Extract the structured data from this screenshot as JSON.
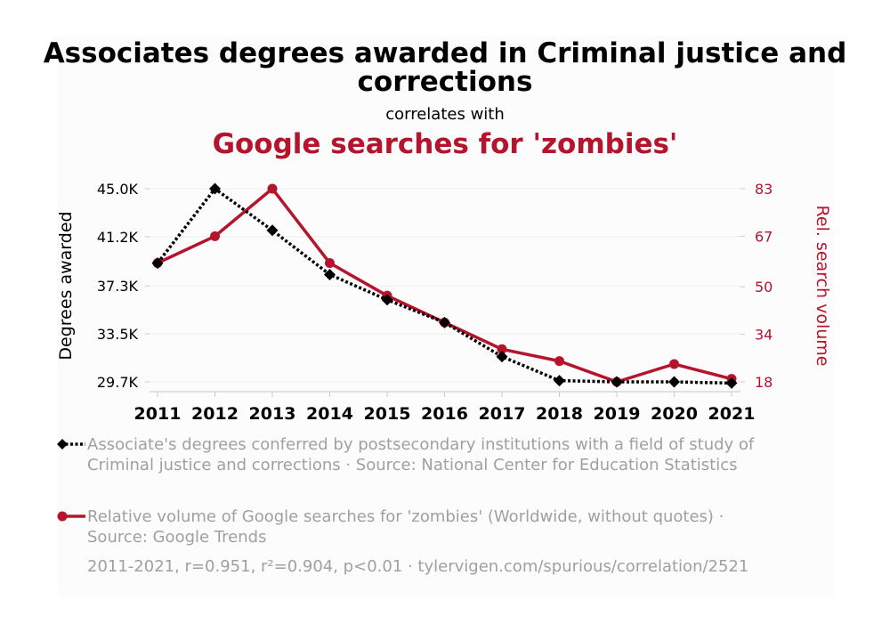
{
  "title": "Associates degrees awarded in Criminal justice and corrections",
  "subtitle": "correlates with",
  "title2": "Google searches for 'zombies'",
  "chart_data": {
    "type": "line",
    "x": [
      "2011",
      "2012",
      "2013",
      "2014",
      "2015",
      "2016",
      "2017",
      "2018",
      "2019",
      "2020",
      "2021"
    ],
    "series": [
      {
        "name": "Associate's degrees conferred by postsecondary institutions with a field of study of Criminal justice and corrections · Source: National Center for Education Statistics",
        "axis": "left",
        "color": "#000000",
        "marker": "diamond",
        "dash": "dotted",
        "values": [
          39100,
          45000,
          41700,
          38200,
          36200,
          34400,
          31700,
          29800,
          29700,
          29700,
          29600
        ]
      },
      {
        "name": "Relative volume of Google searches for 'zombies' (Worldwide, without quotes) · Source: Google Trends",
        "axis": "right",
        "color": "#b5142c",
        "marker": "circle",
        "dash": "solid",
        "values": [
          58,
          67,
          83,
          58,
          47,
          38,
          29,
          25,
          18,
          24,
          19
        ]
      }
    ],
    "ylabel_left": "Degrees awarded",
    "ylabel_right": "Rel. search volume",
    "ylim_left": [
      29700,
      45000
    ],
    "ylim_right": [
      18,
      83
    ],
    "yticks_left": [
      29700,
      33500,
      37300,
      41200,
      45000
    ],
    "yticks_left_labels": [
      "29.7K",
      "33.5K",
      "37.3K",
      "41.2K",
      "45.0K"
    ],
    "yticks_right": [
      18,
      34,
      50,
      67,
      83
    ],
    "yticks_right_labels": [
      "18",
      "34",
      "50",
      "67",
      "83"
    ],
    "grid": true
  },
  "legend": [
    "Associate's degrees conferred by postsecondary institutions with a field of study of Criminal justice and corrections · Source: National Center for Education Statistics",
    "Relative volume of Google searches for 'zombies' (Worldwide, without quotes) · Source: Google Trends"
  ],
  "footer": "2011-2021, r=0.951, r²=0.904, p<0.01 · tylervigen.com/spurious/correlation/2521"
}
